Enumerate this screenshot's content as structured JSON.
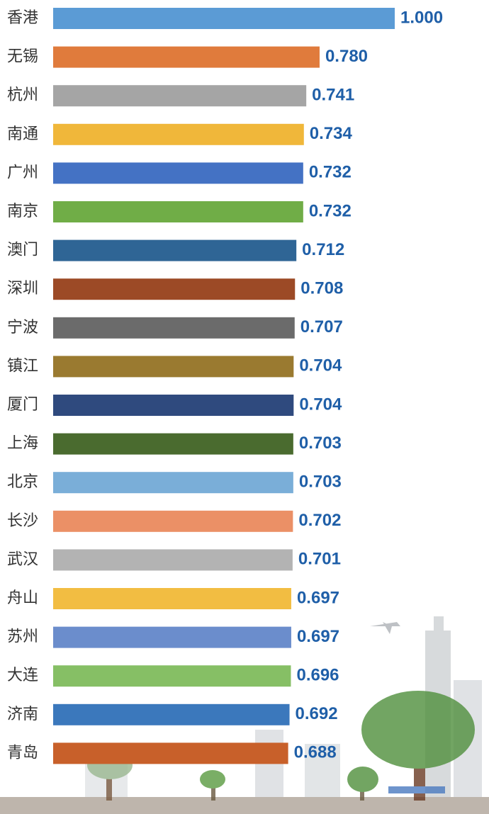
{
  "chart_data": {
    "type": "bar",
    "orientation": "horizontal",
    "categories": [
      "香港",
      "无锡",
      "杭州",
      "南通",
      "广州",
      "南京",
      "澳门",
      "深圳",
      "宁波",
      "镇江",
      "厦门",
      "上海",
      "北京",
      "长沙",
      "武汉",
      "舟山",
      "苏州",
      "大连",
      "济南",
      "青岛"
    ],
    "values": [
      1.0,
      0.78,
      0.741,
      0.734,
      0.732,
      0.732,
      0.712,
      0.708,
      0.707,
      0.704,
      0.704,
      0.703,
      0.703,
      0.702,
      0.701,
      0.697,
      0.697,
      0.696,
      0.692,
      0.688
    ],
    "value_labels": [
      "1.000",
      "0.780",
      "0.741",
      "0.734",
      "0.732",
      "0.732",
      "0.712",
      "0.708",
      "0.707",
      "0.704",
      "0.704",
      "0.703",
      "0.703",
      "0.702",
      "0.701",
      "0.697",
      "0.697",
      "0.696",
      "0.692",
      "0.688"
    ],
    "colors": [
      "#5b9bd5",
      "#e07b3c",
      "#a5a5a5",
      "#f0b73a",
      "#4472c4",
      "#70ad47",
      "#2f6595",
      "#9c4a26",
      "#6b6b6b",
      "#9a7a30",
      "#2f4a7e",
      "#4a6b2f",
      "#7aaed8",
      "#eb9066",
      "#b3b3b3",
      "#f2bd42",
      "#6b8dcc",
      "#86bf65",
      "#3b78bc",
      "#c8602a"
    ],
    "xlim": [
      0,
      1
    ]
  }
}
